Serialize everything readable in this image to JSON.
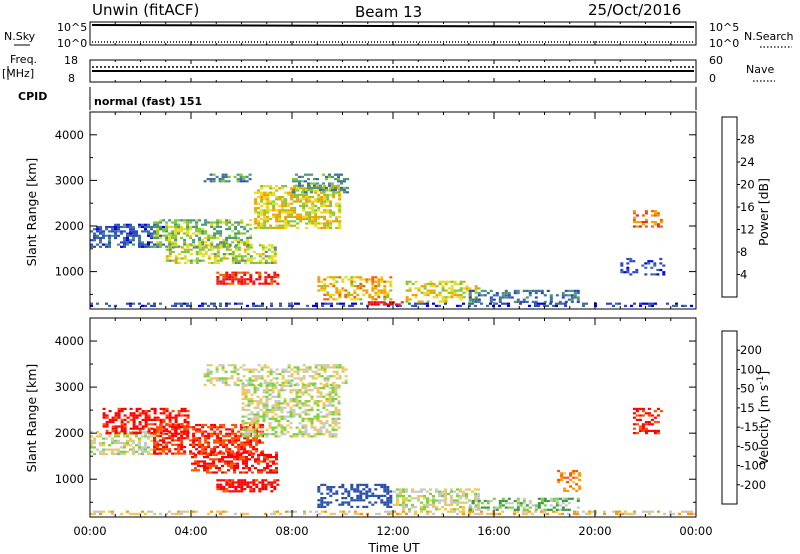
{
  "header": {
    "radar": "Unwin (fitACF)",
    "beam": "Beam 13",
    "date": "25/Oct/2016"
  },
  "top_panels": {
    "nsky_label": "N.Sky",
    "nsky_ticks": [
      "10^5",
      "10^0"
    ],
    "nsearch_label": "N.Search",
    "nsearch_ticks": [
      "10^5",
      "10^0"
    ],
    "freq_label_top": "Freq.",
    "freq_label_unit": "[MHz]",
    "freq_ticks": [
      "18",
      "8"
    ],
    "nave_label": "Nave",
    "nave_ticks": [
      "60",
      "0"
    ],
    "cpid_label": "CPID",
    "cpid_value": "normal (fast) 151"
  },
  "x_axis": {
    "label": "Time UT",
    "ticks": [
      "00:00",
      "04:00",
      "08:00",
      "12:00",
      "16:00",
      "20:00",
      "00:00"
    ]
  },
  "colors": {
    "power_scale": [
      "#0000e6",
      "#2d46c8",
      "#3c6e96",
      "#4b967d",
      "#82c832",
      "#e6dc1e",
      "#f5a000",
      "#f06400",
      "#e62828",
      "#ff0000"
    ],
    "velocity_scale": [
      "#ff0000",
      "#ff5000",
      "#ff9600",
      "#f0c850",
      "#c8c8c8",
      "#78d23c",
      "#3c9646",
      "#2850aa",
      "#0000c8"
    ]
  },
  "chart_data": [
    {
      "type": "heatmap",
      "title": "",
      "xlabel": "",
      "ylabel": "Slant Range [km]",
      "xlim": [
        0,
        24
      ],
      "ylim": [
        180,
        4500
      ],
      "yticks": [
        "1000",
        "2000",
        "3000",
        "4000"
      ],
      "colorbar_label": "Power [dB]",
      "colorbar_ticks": [
        "4",
        "8",
        "12",
        "16",
        "20",
        "24",
        "28"
      ],
      "colorbar_range": [
        0,
        30
      ],
      "regions": [
        {
          "t": [
            0.0,
            24.0
          ],
          "r": [
            200,
            320
          ],
          "v": 5,
          "d": 0.45
        },
        {
          "t": [
            0.0,
            3.0
          ],
          "r": [
            1500,
            2050
          ],
          "v": 6,
          "d": 0.6
        },
        {
          "t": [
            2.5,
            6.5
          ],
          "r": [
            1500,
            2150
          ],
          "v": 13,
          "d": 0.6
        },
        {
          "t": [
            3.0,
            7.5
          ],
          "r": [
            1150,
            1600
          ],
          "v": 15,
          "d": 0.55
        },
        {
          "t": [
            5.0,
            7.5
          ],
          "r": [
            700,
            1000
          ],
          "v": 26,
          "d": 0.65
        },
        {
          "t": [
            6.5,
            10.0
          ],
          "r": [
            1900,
            2900
          ],
          "v": 17,
          "d": 0.6
        },
        {
          "t": [
            8.0,
            10.3
          ],
          "r": [
            2700,
            3150
          ],
          "v": 10,
          "d": 0.5
        },
        {
          "t": [
            4.5,
            6.5
          ],
          "r": [
            2950,
            3150
          ],
          "v": 9,
          "d": 0.5
        },
        {
          "t": [
            9.0,
            12.0
          ],
          "r": [
            350,
            900
          ],
          "v": 18,
          "d": 0.45
        },
        {
          "t": [
            11.0,
            12.5
          ],
          "r": [
            250,
            350
          ],
          "v": 28,
          "d": 0.7
        },
        {
          "t": [
            12.5,
            15.5
          ],
          "r": [
            300,
            800
          ],
          "v": 16,
          "d": 0.5
        },
        {
          "t": [
            15.0,
            19.5
          ],
          "r": [
            300,
            600
          ],
          "v": 8,
          "d": 0.45
        },
        {
          "t": [
            21.0,
            22.8
          ],
          "r": [
            900,
            1300
          ],
          "v": 5,
          "d": 0.35
        },
        {
          "t": [
            21.5,
            22.8
          ],
          "r": [
            1950,
            2350
          ],
          "v": 22,
          "d": 0.45
        }
      ]
    },
    {
      "type": "heatmap",
      "title": "",
      "xlabel": "Time UT",
      "ylabel": "Slant Range [km]",
      "xlim": [
        0,
        24
      ],
      "ylim": [
        180,
        4500
      ],
      "yticks": [
        "1000",
        "2000",
        "3000",
        "4000"
      ],
      "colorbar_label": "Velocity [m s^-1]",
      "colorbar_ticks": [
        "200",
        "100",
        "50",
        "15",
        "-15",
        "-50",
        "-100",
        "-200"
      ],
      "colorbar_range": [
        -250,
        250
      ],
      "regions": [
        {
          "t": [
            0.0,
            24.0
          ],
          "r": [
            200,
            320
          ],
          "v": -30,
          "d": 0.45
        },
        {
          "t": [
            0.0,
            3.0
          ],
          "r": [
            1500,
            2050
          ],
          "v": 0,
          "d": 0.6
        },
        {
          "t": [
            0.5,
            4.0
          ],
          "r": [
            1950,
            2550
          ],
          "v": -220,
          "d": 0.55
        },
        {
          "t": [
            2.5,
            7.0
          ],
          "r": [
            1500,
            2200
          ],
          "v": -200,
          "d": 0.6
        },
        {
          "t": [
            4.0,
            7.5
          ],
          "r": [
            1100,
            1600
          ],
          "v": -210,
          "d": 0.6
        },
        {
          "t": [
            5.0,
            7.5
          ],
          "r": [
            700,
            1000
          ],
          "v": -230,
          "d": 0.65
        },
        {
          "t": [
            6.0,
            10.0
          ],
          "r": [
            1900,
            3100
          ],
          "v": 0,
          "d": 0.55
        },
        {
          "t": [
            4.5,
            10.3
          ],
          "r": [
            3000,
            3500
          ],
          "v": -5,
          "d": 0.45
        },
        {
          "t": [
            9.0,
            12.0
          ],
          "r": [
            350,
            900
          ],
          "v": 150,
          "d": 0.45
        },
        {
          "t": [
            12.0,
            15.5
          ],
          "r": [
            300,
            800
          ],
          "v": 0,
          "d": 0.5
        },
        {
          "t": [
            15.0,
            19.5
          ],
          "r": [
            300,
            600
          ],
          "v": 40,
          "d": 0.45
        },
        {
          "t": [
            18.5,
            19.5
          ],
          "r": [
            700,
            1200
          ],
          "v": -80,
          "d": 0.35
        },
        {
          "t": [
            21.5,
            22.8
          ],
          "r": [
            1950,
            2550
          ],
          "v": -210,
          "d": 0.45
        }
      ]
    }
  ]
}
